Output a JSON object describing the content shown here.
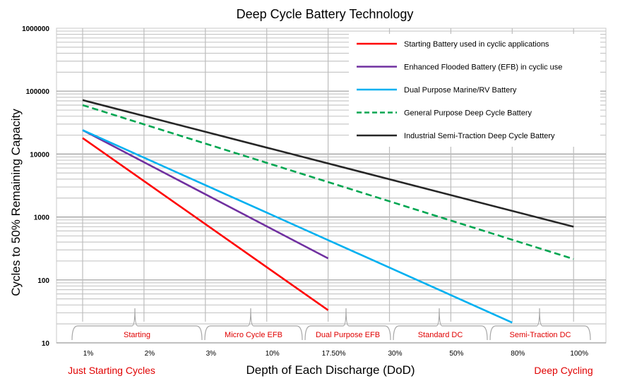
{
  "chart_data": {
    "type": "line",
    "title": "Deep Cycle Battery Technology",
    "xlabel": "Depth of Each Discharge (DoD)",
    "ylabel": "Cycles to 50% Remaining Capacity",
    "y_scale": "log",
    "ylim": [
      10,
      1000000
    ],
    "y_ticks": [
      "1000000",
      "100000",
      "10000",
      "1000",
      "100",
      "10"
    ],
    "x_ticks": [
      "1%",
      "2%",
      "3%",
      "10%",
      "17.50%",
      "30%",
      "50%",
      "80%",
      "100%"
    ],
    "x_bands": [
      "Starting",
      "Micro Cycle EFB",
      "Dual Purpose EFB",
      "Standard DC",
      "Semi-Traction DC"
    ],
    "left_note": "Just Starting Cycles",
    "right_note": "Deep Cycling",
    "legend_position": "top-right",
    "grid": true,
    "series": [
      {
        "name": "Starting Battery used in cyclic applications",
        "color": "#ff0000",
        "dash": "solid",
        "x": [
          "1%",
          "17.50%"
        ],
        "y": [
          18000,
          33
        ]
      },
      {
        "name": "Enhanced Flooded Battery (EFB) in cyclic use",
        "color": "#7030a0",
        "dash": "solid",
        "x": [
          "1%",
          "17.50%"
        ],
        "y": [
          24000,
          220
        ]
      },
      {
        "name": "Dual Purpose Marine/RV Battery",
        "color": "#00b0f0",
        "dash": "solid",
        "x": [
          "1%",
          "80%"
        ],
        "y": [
          24000,
          21
        ]
      },
      {
        "name": "General Purpose Deep Cycle Battery",
        "color": "#00a651",
        "dash": "dashed",
        "x": [
          "1%",
          "100%"
        ],
        "y": [
          60000,
          215
        ]
      },
      {
        "name": "Industrial Semi-Traction Deep Cycle Battery",
        "color": "#262626",
        "dash": "solid",
        "x": [
          "1%",
          "100%"
        ],
        "y": [
          72000,
          700
        ]
      }
    ]
  }
}
